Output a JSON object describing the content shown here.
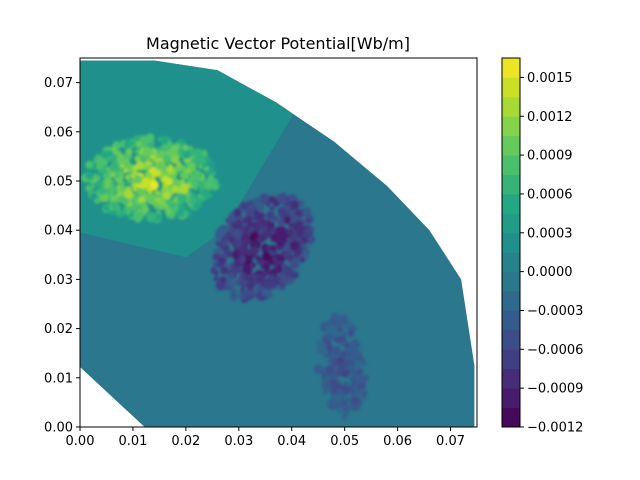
{
  "chart_data": {
    "type": "heatmap",
    "title": "Magnetic Vector Potential[Wb/m]",
    "xlabel": "",
    "ylabel": "",
    "xlim": [
      0.0,
      0.075
    ],
    "ylim": [
      0.0,
      0.075
    ],
    "x_ticks": [
      "0.00",
      "0.01",
      "0.02",
      "0.03",
      "0.04",
      "0.05",
      "0.06",
      "0.07"
    ],
    "y_ticks": [
      "0.00",
      "0.01",
      "0.02",
      "0.03",
      "0.04",
      "0.05",
      "0.06",
      "0.07"
    ],
    "colorbar": {
      "colormap": "viridis",
      "range": [
        -0.0012,
        0.00165
      ],
      "levels": 19,
      "ticks": [
        "0.0015",
        "0.0012",
        "0.0009",
        "0.0006",
        "0.0003",
        "0.0000",
        "−0.0003",
        "−0.0006",
        "−0.0009",
        "−0.0012"
      ]
    },
    "domain": {
      "outer_radius": 0.075,
      "outline": [
        [
          0.0,
          0.0122
        ],
        [
          0.0122,
          0.0
        ],
        [
          0.0745,
          0.0
        ],
        [
          0.0745,
          0.0125
        ],
        [
          0.072,
          0.03
        ],
        [
          0.066,
          0.04
        ],
        [
          0.058,
          0.049
        ],
        [
          0.048,
          0.058
        ],
        [
          0.037,
          0.066
        ],
        [
          0.026,
          0.0725
        ],
        [
          0.014,
          0.0745
        ],
        [
          0.0,
          0.0745
        ]
      ]
    },
    "regions": [
      {
        "name": "background",
        "value": 0.0
      },
      {
        "name": "upper-left sector",
        "value": 0.0003
      },
      {
        "name": "positive coil (upper-left)",
        "value": 0.0014
      },
      {
        "name": "negative coil (middle)",
        "value": -0.0011
      },
      {
        "name": "negative coil tail (lower-right)",
        "value": -0.0006
      }
    ],
    "grid": false,
    "legend": "colorbar-right"
  }
}
